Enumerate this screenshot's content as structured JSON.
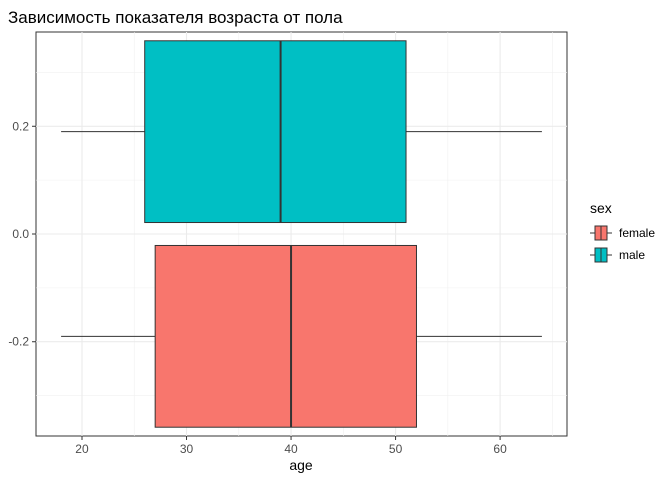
{
  "chart_data": {
    "type": "boxplot",
    "title": "Зависимость показателя возраста от пола",
    "xlabel": "age",
    "ylabel": "",
    "xlim": [
      15.6,
      66.4
    ],
    "ylim": [
      -0.375,
      0.375
    ],
    "x_ticks": [
      20,
      30,
      40,
      50,
      60
    ],
    "y_ticks": [
      -0.2,
      0.0,
      0.2
    ],
    "y_tick_labels": [
      "-0.2",
      "0.0",
      "0.2"
    ],
    "grid": true,
    "legend": {
      "title": "sex",
      "placement": "right"
    },
    "series": [
      {
        "name": "female",
        "color": "#F8766D",
        "center": -0.19,
        "halfwidth": 0.1687,
        "min": 18,
        "q1": 27,
        "median": 40,
        "q3": 52,
        "max": 64
      },
      {
        "name": "male",
        "color": "#00BFC4",
        "center": 0.19,
        "halfwidth": 0.1687,
        "min": 18,
        "q1": 26,
        "median": 39,
        "q3": 51,
        "max": 64
      }
    ]
  }
}
